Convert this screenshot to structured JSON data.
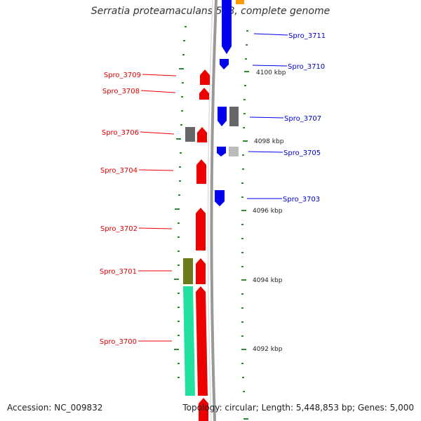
{
  "title": "Serratia proteamaculans 568, complete genome",
  "accession": "Accession: NC_009832",
  "summary": "Topology: circular; Length: 5,448,853 bp; Genes: 5,000",
  "colors": {
    "forward_cds": "#ff0000",
    "reverse_cds": "#0000ff",
    "grey_feature": "#666666",
    "light_grey_feature": "#bbbbbb",
    "olive_feature": "#6b7a1a",
    "teal_feature": "#22e0a0",
    "orange_feature": "#ff9900",
    "tick": "#2e8b2e",
    "backbone": "#999999"
  },
  "kbp_labels": [
    "4100 kbp",
    "4098 kbp",
    "4096 kbp",
    "4094 kbp",
    "4092 kbp"
  ],
  "left_labels": [
    "Spro_3709",
    "Spro_3708",
    "Spro_3706",
    "Spro_3704",
    "Spro_3702",
    "Spro_3701",
    "Spro_3700"
  ],
  "right_labels": [
    "Spro_3711",
    "Spro_3710",
    "Spro_3707",
    "Spro_3705",
    "Spro_3703"
  ]
}
